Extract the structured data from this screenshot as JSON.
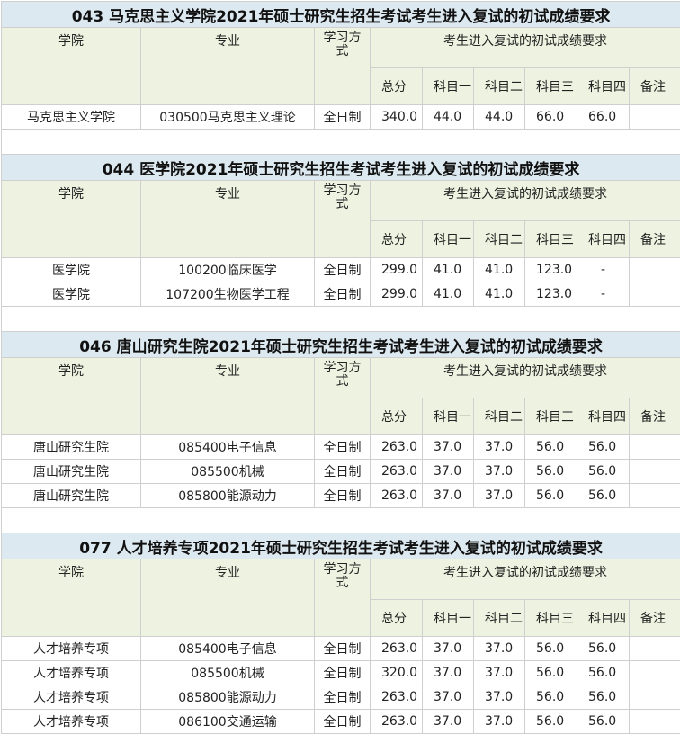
{
  "headers": {
    "college": "学院",
    "major": "专业",
    "mode": "学习方式",
    "group": "考生进入复试的初试成绩要求",
    "sub": [
      "总分",
      "科目一",
      "科目二",
      "科目三",
      "科目四",
      "备注"
    ]
  },
  "sections": [
    {
      "title": "043 马克思主义学院2021年硕士研究生招生考试考生进入复试的初试成绩要求",
      "rows": [
        [
          "马克思主义学院",
          "030500马克思主义理论",
          "全日制",
          "340.0",
          "44.0",
          "44.0",
          "66.0",
          "66.0",
          ""
        ]
      ]
    },
    {
      "title": "044 医学院2021年硕士研究生招生考试考生进入复试的初试成绩要求",
      "rows": [
        [
          "医学院",
          "100200临床医学",
          "全日制",
          "299.0",
          "41.0",
          "41.0",
          "123.0",
          "-",
          ""
        ],
        [
          "医学院",
          "107200生物医学工程",
          "全日制",
          "299.0",
          "41.0",
          "41.0",
          "123.0",
          "-",
          ""
        ]
      ]
    },
    {
      "title": "046 唐山研究生院2021年硕士研究生招生考试考生进入复试的初试成绩要求",
      "rows": [
        [
          "唐山研究生院",
          "085400电子信息",
          "全日制",
          "263.0",
          "37.0",
          "37.0",
          "56.0",
          "56.0",
          ""
        ],
        [
          "唐山研究生院",
          "085500机械",
          "全日制",
          "263.0",
          "37.0",
          "37.0",
          "56.0",
          "56.0",
          ""
        ],
        [
          "唐山研究生院",
          "085800能源动力",
          "全日制",
          "263.0",
          "37.0",
          "37.0",
          "56.0",
          "56.0",
          ""
        ]
      ]
    },
    {
      "title": "077 人才培养专项2021年硕士研究生招生考试考生进入复试的初试成绩要求",
      "rows": [
        [
          "人才培养专项",
          "085400电子信息",
          "全日制",
          "263.0",
          "37.0",
          "37.0",
          "56.0",
          "56.0",
          ""
        ],
        [
          "人才培养专项",
          "085500机械",
          "全日制",
          "320.0",
          "37.0",
          "37.0",
          "56.0",
          "56.0",
          ""
        ],
        [
          "人才培养专项",
          "085800能源动力",
          "全日制",
          "263.0",
          "37.0",
          "37.0",
          "56.0",
          "56.0",
          ""
        ],
        [
          "人才培养专项",
          "086100交通运输",
          "全日制",
          "263.0",
          "37.0",
          "37.0",
          "56.0",
          "56.0",
          ""
        ]
      ]
    }
  ]
}
